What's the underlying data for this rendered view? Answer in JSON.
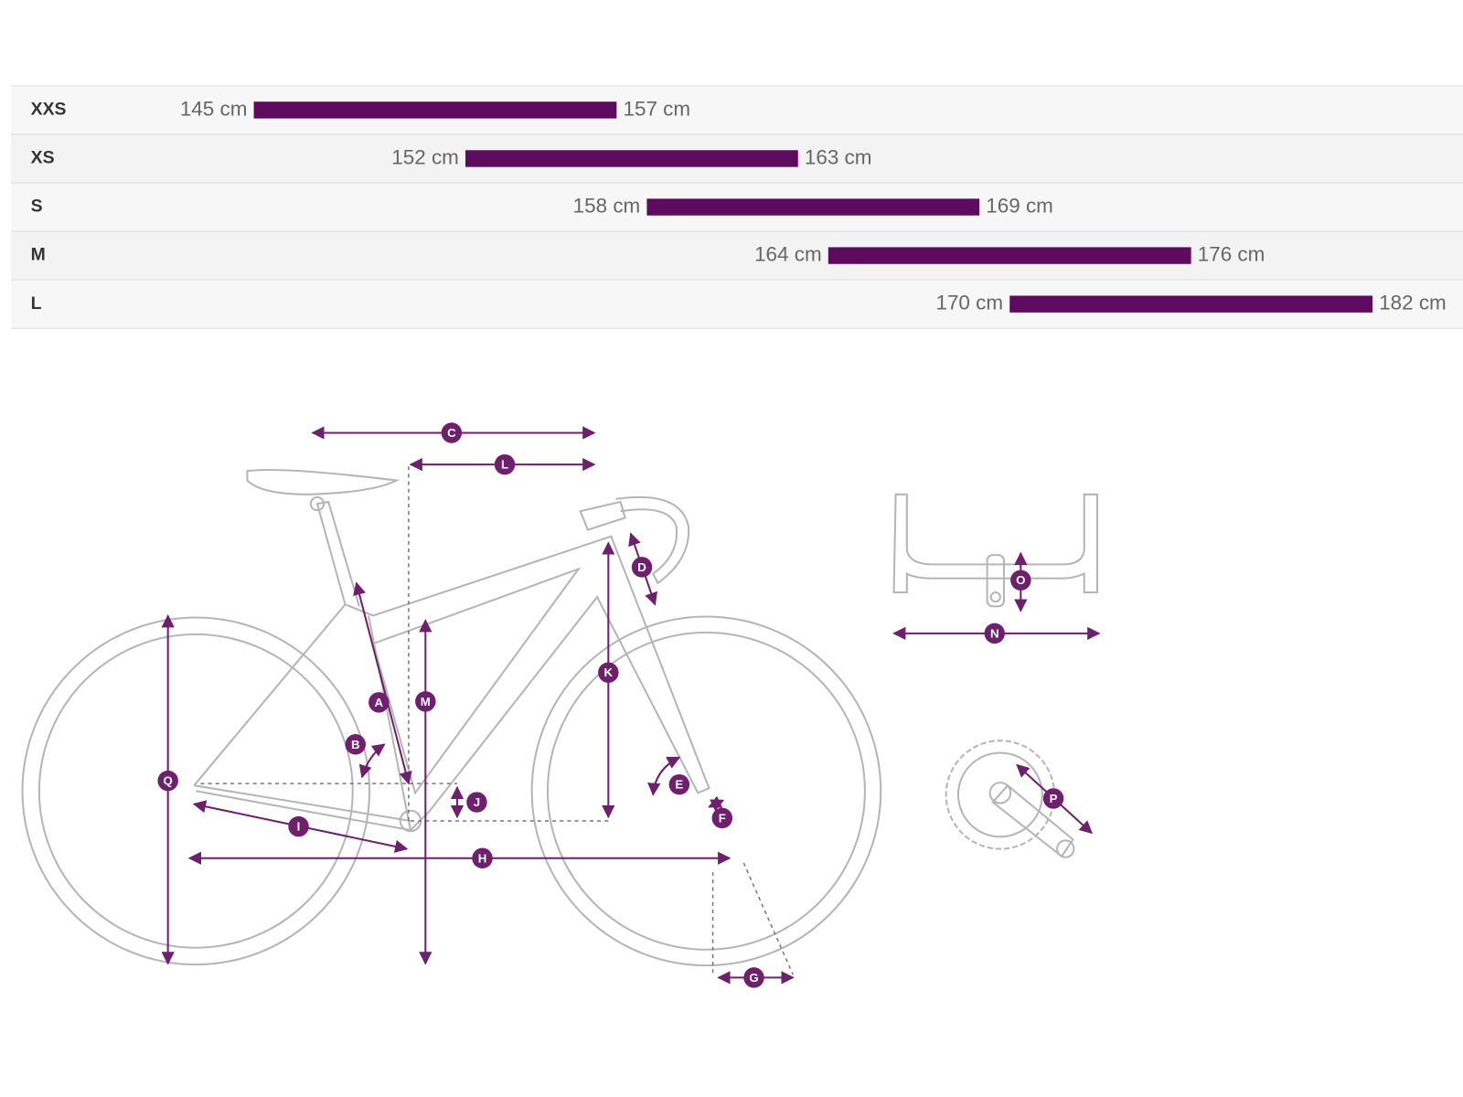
{
  "chart_data": {
    "type": "range-bar",
    "categories": [
      "XXS",
      "XS",
      "S",
      "M",
      "L"
    ],
    "start": {
      "values": [
        145,
        152,
        158,
        164,
        170
      ],
      "value_labels": [
        "145 cm",
        "152 cm",
        "158 cm",
        "164 cm",
        "170 cm"
      ]
    },
    "end": {
      "values": [
        157,
        163,
        169,
        176,
        182
      ],
      "value_labels": [
        "157 cm",
        "163 cm",
        "169 cm",
        "176 cm",
        "182 cm"
      ]
    },
    "color": "#5e0a5e"
  },
  "diagram": {
    "labels": [
      "A",
      "B",
      "C",
      "D",
      "E",
      "F",
      "G",
      "H",
      "I",
      "J",
      "K",
      "L",
      "M",
      "N",
      "O",
      "P",
      "Q"
    ]
  }
}
